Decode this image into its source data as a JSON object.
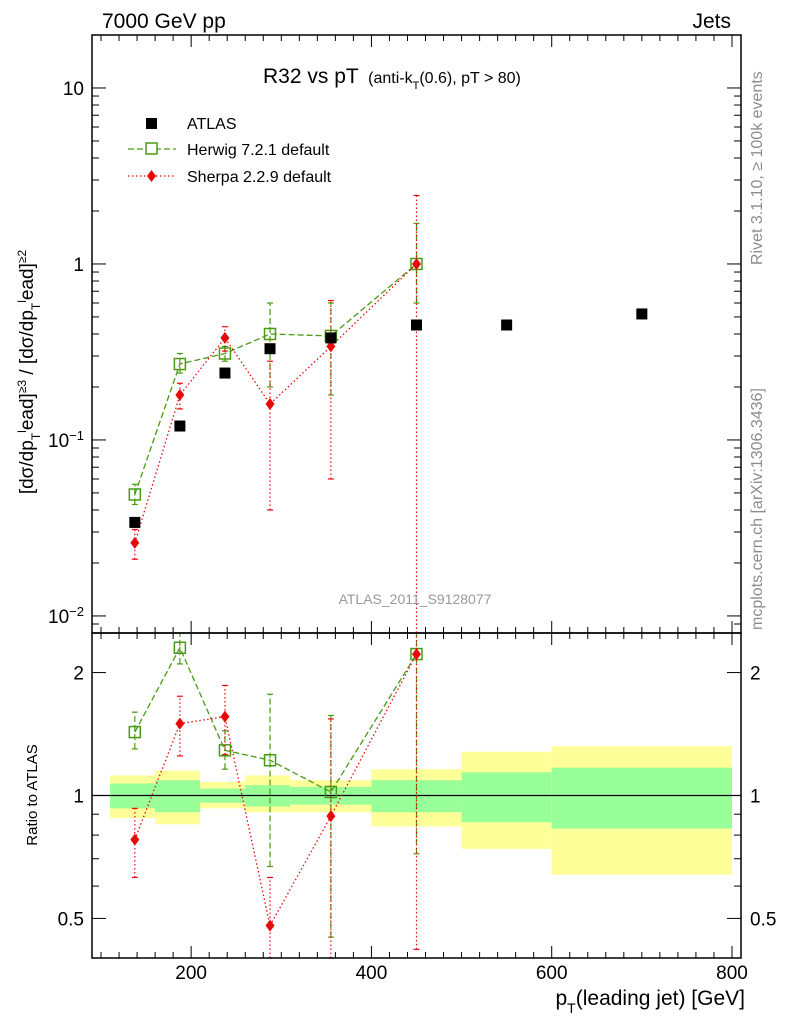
{
  "header": {
    "energy": "7000 GeV pp",
    "category": "Jets"
  },
  "side_labels": {
    "rivet": "Rivet 3.1.10, ≥ 100k events",
    "mcplots": "mcplots.cern.ch [arXiv:1306.3436]"
  },
  "analysis_id": "ATLAS_2011_S9128077",
  "chart_data": {
    "type": "scatter",
    "title_main": "R32 vs pT",
    "title_sub": "(anti-kT(0.6), pT > 80)",
    "xlabel": "pT(leading jet) [GeV]",
    "ylabel_top": "[dσ/dpTlead]≥3 / [dσ/dpTlead]≥2",
    "ylabel_bottom": "Ratio to ATLAS",
    "xlim": [
      90,
      810
    ],
    "top": {
      "yscale": "log",
      "ylim": [
        0.008,
        20
      ],
      "yticks": [
        {
          "v": 0.01,
          "label": "10⁻²"
        },
        {
          "v": 0.1,
          "label": "10⁻¹"
        },
        {
          "v": 1,
          "label": "1"
        },
        {
          "v": 10,
          "label": "10"
        }
      ]
    },
    "bottom": {
      "yscale": "log",
      "ylim": [
        0.4,
        2.5
      ],
      "yticks": [
        {
          "v": 0.5,
          "label": "0.5"
        },
        {
          "v": 1,
          "label": "1"
        },
        {
          "v": 2,
          "label": "2"
        }
      ]
    },
    "xticks": [
      {
        "v": 200,
        "label": "200"
      },
      {
        "v": 400,
        "label": "400"
      },
      {
        "v": 600,
        "label": "600"
      },
      {
        "v": 800,
        "label": "800"
      }
    ],
    "legend_position": "top-left",
    "series": [
      {
        "name": "ATLAS",
        "color": "#000000",
        "marker": "filled-square",
        "x": [
          137.5,
          187.5,
          237.5,
          287.5,
          355,
          450,
          550,
          700
        ],
        "y": [
          0.034,
          0.12,
          0.24,
          0.33,
          0.38,
          0.45,
          0.45,
          0.52
        ],
        "yerr": [
          0.002,
          0.004,
          0.005,
          0.007,
          0.01,
          0.015,
          0.02,
          0.03
        ]
      },
      {
        "name": "Herwig 7.2.1 default",
        "color": "#4a9a14",
        "marker": "open-square",
        "dash": "6,3",
        "x": [
          137.5,
          187.5,
          237.5,
          287.5,
          355,
          450
        ],
        "y": [
          0.049,
          0.27,
          0.31,
          0.4,
          0.39,
          1.0
        ],
        "err_lo": [
          0.006,
          0.03,
          0.03,
          0.2,
          0.21,
          0.4
        ],
        "err_hi": [
          0.007,
          0.04,
          0.03,
          0.2,
          0.21,
          0.7
        ],
        "ratio": [
          1.43,
          2.3,
          1.29,
          1.22,
          1.02,
          2.22
        ],
        "ratio_lo": [
          0.13,
          0.2,
          0.13,
          0.55,
          0.57,
          1.5
        ],
        "ratio_hi": [
          0.17,
          0.2,
          0.15,
          0.55,
          0.55,
          1.3
        ]
      },
      {
        "name": "Sherpa 2.2.9 default",
        "color": "#e8090a",
        "marker": "filled-diamond",
        "dash": "1.5,2.5",
        "x": [
          137.5,
          187.5,
          237.5,
          287.5,
          355,
          450
        ],
        "y": [
          0.026,
          0.18,
          0.38,
          0.16,
          0.34,
          1.0
        ],
        "err_lo": [
          0.005,
          0.03,
          0.06,
          0.12,
          0.28,
          1.0
        ],
        "err_hi": [
          0.005,
          0.03,
          0.06,
          0.12,
          0.28,
          1.45
        ],
        "ratio": [
          0.78,
          1.5,
          1.56,
          0.48,
          0.89,
          2.22
        ],
        "ratio_lo": [
          0.15,
          0.25,
          0.3,
          0.15,
          0.6,
          1.8
        ],
        "ratio_hi": [
          0.15,
          0.25,
          0.3,
          0.15,
          0.65,
          1.4
        ]
      }
    ],
    "uncertainty_bands": {
      "edges": [
        110,
        160,
        210,
        260,
        310,
        400,
        500,
        600,
        800
      ],
      "inner_lo": [
        0.93,
        0.91,
        0.96,
        0.94,
        0.95,
        0.91,
        0.86,
        0.83
      ],
      "inner_hi": [
        1.07,
        1.09,
        1.04,
        1.06,
        1.05,
        1.09,
        1.14,
        1.17
      ],
      "outer_lo": [
        0.88,
        0.85,
        0.93,
        0.91,
        0.91,
        0.84,
        0.74,
        0.64
      ],
      "outer_hi": [
        1.12,
        1.15,
        1.08,
        1.12,
        1.09,
        1.16,
        1.28,
        1.32
      ],
      "inner_color": "#99ff99",
      "outer_color": "#ffff99"
    }
  }
}
